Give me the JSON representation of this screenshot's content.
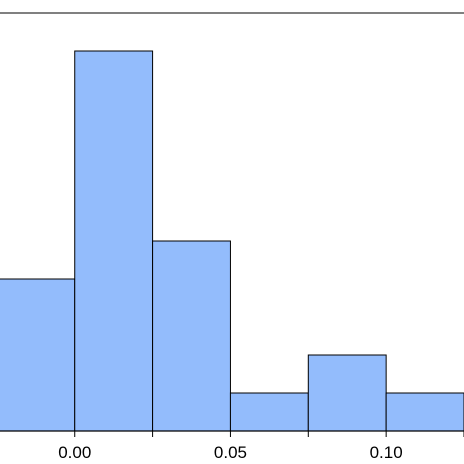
{
  "chart_data": {
    "type": "bar",
    "title": "",
    "xlabel": "",
    "ylabel": "",
    "bin_width": 0.025,
    "bins": [
      {
        "x_start": -0.025,
        "x_end": 0.0,
        "value": 4
      },
      {
        "x_start": 0.0,
        "x_end": 0.025,
        "value": 10
      },
      {
        "x_start": 0.025,
        "x_end": 0.05,
        "value": 5
      },
      {
        "x_start": 0.05,
        "x_end": 0.075,
        "value": 1
      },
      {
        "x_start": 0.075,
        "x_end": 0.1,
        "value": 2
      },
      {
        "x_start": 0.1,
        "x_end": 0.125,
        "value": 1
      }
    ],
    "xlim": [
      -0.024,
      0.125
    ],
    "ylim": [
      0,
      11
    ],
    "x_ticks": [
      {
        "value": 0.0,
        "label": "0.00"
      },
      {
        "value": 0.05,
        "label": "0.05"
      },
      {
        "value": 0.1,
        "label": "0.10"
      }
    ],
    "x_minor_ticks": [
      0.025,
      0.075,
      0.125
    ],
    "grid": false,
    "legend": "none",
    "colors": {
      "bar_fill": "#93bcfc",
      "bar_stroke": "#000000",
      "axis": "#000000"
    }
  }
}
